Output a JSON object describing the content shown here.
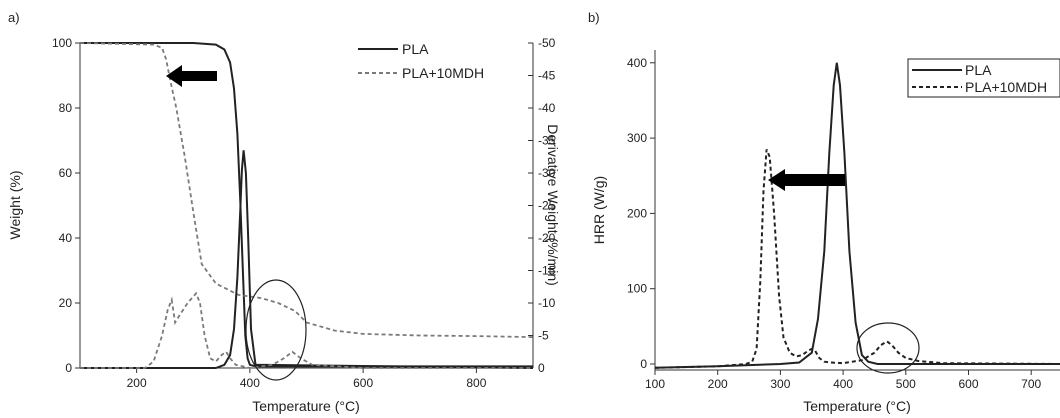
{
  "chart_data": [
    {
      "panel_label": "a)",
      "type": "line",
      "xlabel": "Temperature (°C)",
      "ylabel": "Weight (%)",
      "y2label": "Derivative Weight (%/min)",
      "xlim": [
        100,
        900
      ],
      "ylim": [
        0,
        100
      ],
      "y2lim": [
        0,
        -50
      ],
      "xticks": [
        "200",
        "400",
        "600",
        "800"
      ],
      "yticks": [
        "0",
        "20",
        "40",
        "60",
        "80",
        "100"
      ],
      "y2ticks": [
        "0",
        "-5",
        "-10",
        "-15",
        "-20",
        "-25",
        "-30",
        "-35",
        "-40",
        "-45",
        "-50"
      ],
      "legend": {
        "placement": "top-right",
        "entries": [
          "PLA",
          "PLA+10MDH"
        ]
      },
      "series": [
        {
          "name": "PLA",
          "style": "solid",
          "color": "#222222",
          "axis": "left",
          "x": [
            100,
            300,
            340,
            355,
            365,
            372,
            378,
            383,
            388,
            392,
            396,
            400,
            410,
            500,
            900
          ],
          "y": [
            100,
            100,
            99.5,
            98,
            94,
            86,
            72,
            52,
            28,
            10,
            3,
            1,
            0.5,
            0.5,
            0.5
          ]
        },
        {
          "name": "PLA+10MDH",
          "style": "dashed",
          "color": "#7a7a7a",
          "axis": "left",
          "x": [
            100,
            230,
            245,
            252,
            260,
            270,
            285,
            300,
            315,
            340,
            380,
            420,
            450,
            480,
            500,
            550,
            600,
            700,
            800,
            900
          ],
          "y": [
            100,
            99.5,
            98.5,
            95,
            88,
            80,
            65,
            48,
            32,
            26,
            22.5,
            21.5,
            20,
            17.5,
            14,
            11.5,
            10.5,
            10,
            9.8,
            9.5
          ]
        },
        {
          "name": "PLA",
          "style": "solid",
          "color": "#222222",
          "axis": "right",
          "x": [
            100,
            340,
            355,
            365,
            372,
            378,
            383,
            386,
            389,
            393,
            397,
            402,
            410,
            900
          ],
          "y": [
            0,
            0,
            -0.5,
            -2,
            -6,
            -14,
            -24,
            -30.5,
            -33.5,
            -30,
            -20,
            -6,
            -0.5,
            0
          ]
        },
        {
          "name": "PLA+10MDH",
          "style": "dashed",
          "color": "#7a7a7a",
          "axis": "right",
          "x": [
            100,
            215,
            230,
            245,
            255,
            262,
            268,
            275,
            290,
            305,
            312,
            320,
            330,
            340,
            350,
            358,
            365,
            375,
            400,
            440,
            460,
            475,
            490,
            510,
            600,
            900
          ],
          "y": [
            0,
            0,
            -1,
            -5,
            -9,
            -10.5,
            -7,
            -8,
            -10,
            -11.5,
            -10,
            -5,
            -1.5,
            -1,
            -2,
            -2.5,
            -1.5,
            -0.5,
            0,
            -0.5,
            -1.5,
            -2.5,
            -1.5,
            -0.5,
            0,
            0
          ]
        }
      ]
    },
    {
      "panel_label": "b)",
      "type": "line",
      "xlabel": "Temperature (°C)",
      "ylabel": "HRR (W/g)",
      "xlim": [
        100,
        750
      ],
      "ylim": [
        0,
        420
      ],
      "xticks": [
        "100",
        "200",
        "300",
        "400",
        "500",
        "600",
        "700"
      ],
      "yticks": [
        "0",
        "100",
        "200",
        "300",
        "400"
      ],
      "legend": {
        "placement": "top-right",
        "entries": [
          "PLA",
          "PLA+10MDH"
        ]
      },
      "series": [
        {
          "name": "PLA",
          "style": "solid",
          "color": "#222222",
          "x": [
            100,
            200,
            300,
            330,
            350,
            360,
            370,
            378,
            385,
            390,
            395,
            402,
            410,
            420,
            430,
            440,
            455,
            750
          ],
          "y": [
            -5,
            -3,
            0,
            2,
            15,
            60,
            150,
            280,
            370,
            400,
            370,
            280,
            150,
            55,
            12,
            3,
            0,
            0
          ]
        },
        {
          "name": "PLA+10MDH",
          "style": "dashed",
          "color": "#222222",
          "x": [
            100,
            200,
            245,
            255,
            262,
            268,
            273,
            278,
            283,
            290,
            298,
            305,
            315,
            325,
            335,
            345,
            350,
            355,
            362,
            370,
            380,
            400,
            430,
            450,
            460,
            470,
            478,
            488,
            500,
            520,
            560,
            750
          ],
          "y": [
            -5,
            -3,
            0,
            3,
            20,
            110,
            230,
            285,
            275,
            200,
            90,
            35,
            15,
            10,
            12,
            18,
            20,
            18,
            8,
            3,
            2,
            1,
            5,
            15,
            25,
            30,
            25,
            15,
            8,
            4,
            1,
            0
          ]
        }
      ]
    }
  ]
}
